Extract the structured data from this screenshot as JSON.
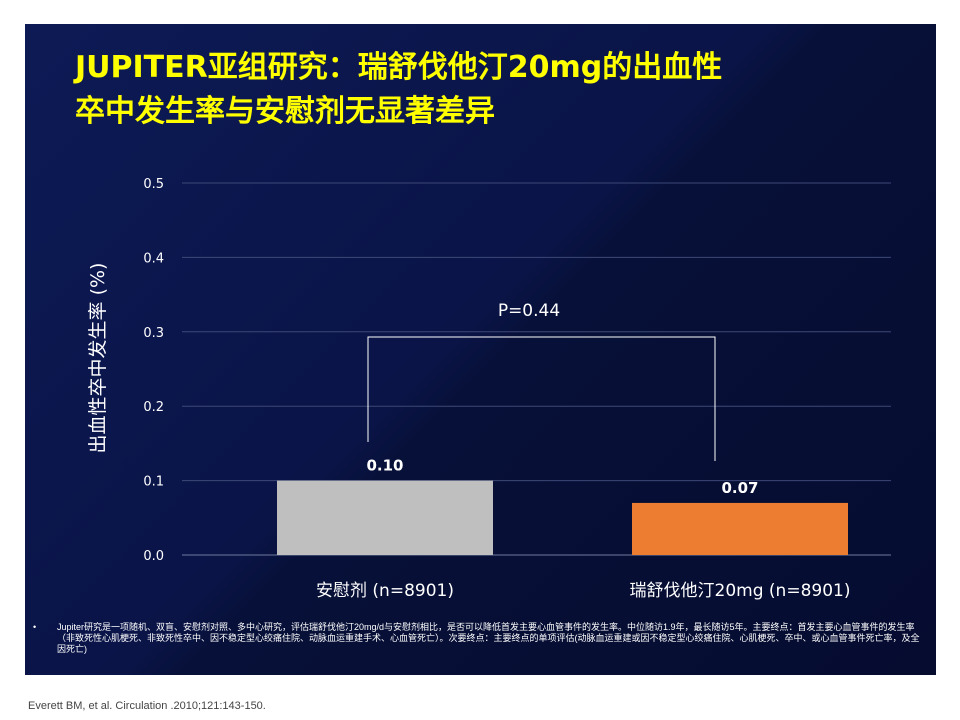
{
  "title": {
    "line1": "JUPITER亚组研究：瑞舒伐他汀20mg的出血性",
    "line2": "卒中发生率与安慰剂无显著差异"
  },
  "chart_data": {
    "type": "bar",
    "categories": [
      "安慰剂 (n=8901)",
      "瑞舒伐他汀20mg (n=8901)"
    ],
    "values": [
      0.1,
      0.07
    ],
    "data_labels": [
      "0.10",
      "0.07"
    ],
    "bar_colors": [
      "#bfbfbf",
      "#ed7d31"
    ],
    "ylabel": "出血性卒中发生率 (%)",
    "ylim": [
      0,
      0.5
    ],
    "yticks": [
      "0.0",
      "0.1",
      "0.2",
      "0.3",
      "0.4",
      "0.5"
    ],
    "grid": true,
    "annotation": "P=0.44"
  },
  "footnote": {
    "bullet": "•",
    "text": "Jupiter研究是一项随机、双盲、安慰剂对照、多中心研究，评估瑞舒伐他汀20mg/d与安慰剂相比，是否可以降低首发主要心血管事件的发生率。中位随访1.9年，最长随访5年。主要终点：首发主要心血管事件的发生率（非致死性心肌梗死、非致死性卒中、因不稳定型心绞痛住院、动脉血运重建手术、心血管死亡）。次要终点：主要终点的单项评估(动脉血运重建或因不稳定型心绞痛住院、心肌梗死、卒中、或心血管事件死亡率，及全因死亡)"
  },
  "citation": "Everett BM, et al. Circulation .2010;121:143-150."
}
